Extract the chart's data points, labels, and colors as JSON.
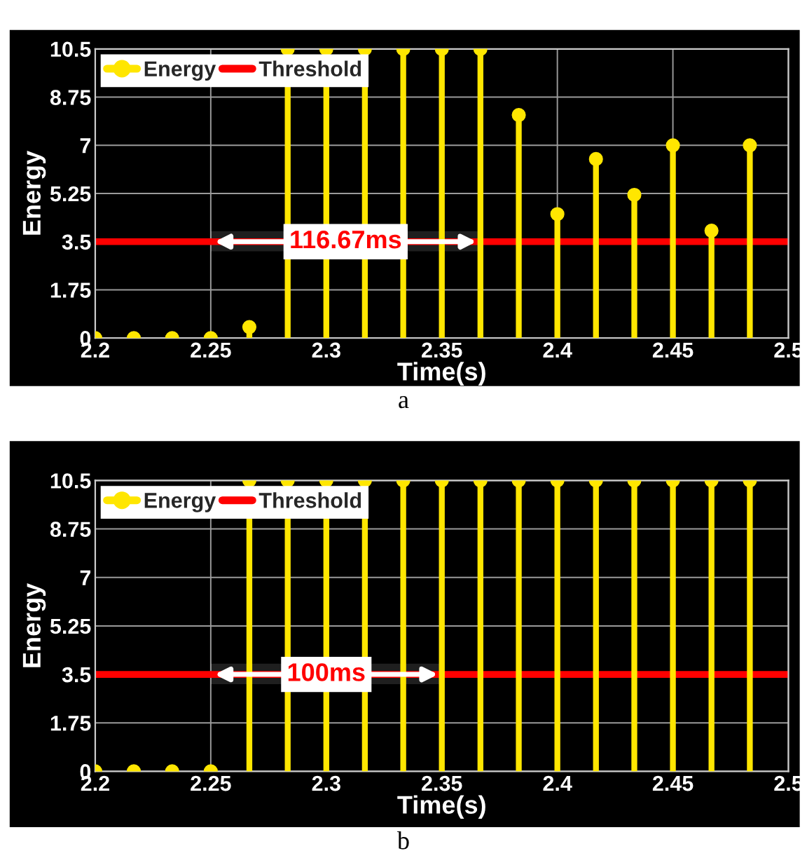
{
  "chart_data": [
    {
      "type": "lollipop",
      "xlabel": "Time(s)",
      "ylabel": "Energy",
      "xlim": [
        2.2,
        2.5
      ],
      "xticks": [
        2.2,
        2.25,
        2.3,
        2.35,
        2.4,
        2.45,
        2.5
      ],
      "ylim": [
        0,
        10.5
      ],
      "yticks": [
        0,
        1.75,
        3.5,
        5.25,
        7,
        8.75,
        10.5
      ],
      "grid": true,
      "legend": "top left",
      "series": [
        {
          "name": "Energy",
          "marker": "circle",
          "color": "#ffe600",
          "x": [
            2.2,
            2.2167,
            2.2333,
            2.25,
            2.2667,
            2.2833,
            2.3,
            2.3167,
            2.3333,
            2.35,
            2.3667,
            2.3833,
            2.4,
            2.4167,
            2.4333,
            2.45,
            2.4667,
            2.4833
          ],
          "values": [
            0,
            0,
            0,
            0,
            0.4,
            10.5,
            10.5,
            10.5,
            10.5,
            10.5,
            10.5,
            8.1,
            4.5,
            6.5,
            5.2,
            7.0,
            3.9,
            7.0
          ]
        },
        {
          "name": "Threshold",
          "type": "line",
          "color": "#ff0000",
          "x": [
            2.2,
            2.5
          ],
          "values": [
            3.5,
            3.5
          ]
        }
      ],
      "bands": [
        {
          "axis": "x",
          "from": 2.25,
          "to": 2.3667,
          "label": "116.67ms",
          "color": "#ffffff"
        }
      ],
      "annotations": [
        "a"
      ]
    },
    {
      "type": "lollipop",
      "xlabel": "Time(s)",
      "ylabel": "Energy",
      "xlim": [
        2.2,
        2.5
      ],
      "xticks": [
        2.2,
        2.25,
        2.3,
        2.35,
        2.4,
        2.45,
        2.5
      ],
      "ylim": [
        0,
        10.5
      ],
      "yticks": [
        0,
        1.75,
        3.5,
        5.25,
        7,
        8.75,
        10.5
      ],
      "grid": true,
      "legend": "top left",
      "series": [
        {
          "name": "Energy",
          "marker": "circle",
          "color": "#ffe600",
          "x": [
            2.2,
            2.2167,
            2.2333,
            2.25,
            2.2667,
            2.2833,
            2.3,
            2.3167,
            2.3333,
            2.35,
            2.3667,
            2.3833,
            2.4,
            2.4167,
            2.4333,
            2.45,
            2.4667,
            2.4833
          ],
          "values": [
            0,
            0,
            0,
            0,
            10.5,
            10.5,
            10.5,
            10.5,
            10.5,
            10.5,
            10.5,
            10.5,
            10.5,
            10.5,
            10.5,
            10.5,
            10.5,
            10.5
          ]
        },
        {
          "name": "Threshold",
          "type": "line",
          "color": "#ff0000",
          "x": [
            2.2,
            2.5
          ],
          "values": [
            3.5,
            3.5
          ]
        }
      ],
      "bands": [
        {
          "axis": "x",
          "from": 2.25,
          "to": 2.35,
          "label": "100ms",
          "color": "#ffffff"
        }
      ],
      "annotations": [
        "b"
      ]
    }
  ]
}
